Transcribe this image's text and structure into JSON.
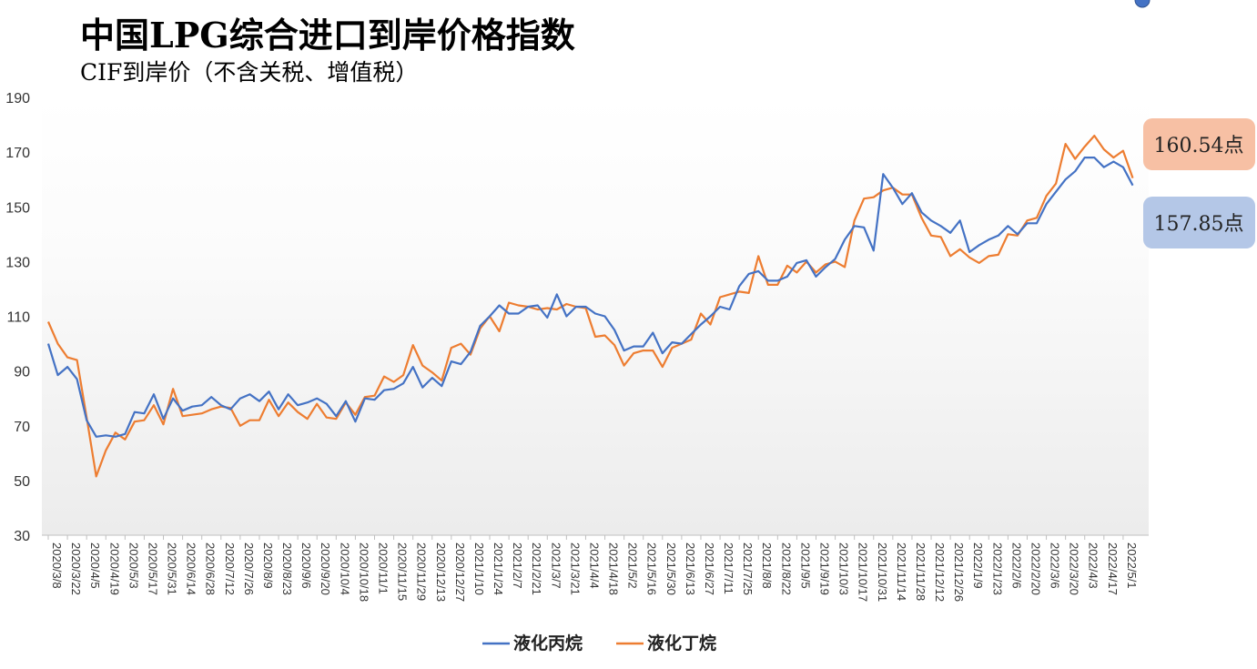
{
  "chart_data": {
    "type": "line",
    "title": "中国LPG综合进口到岸价格指数",
    "subtitle": "CIF到岸价（不含关税、增值税）",
    "ylim": [
      30,
      190
    ],
    "y_ticks": [
      "30",
      "50",
      "70",
      "90",
      "110",
      "130",
      "150",
      "170",
      "190"
    ],
    "x_tick_labels": [
      "2020/3/8",
      "2020/3/22",
      "2020/4/5",
      "2020/4/19",
      "2020/5/3",
      "2020/5/17",
      "2020/5/31",
      "2020/6/14",
      "2020/6/28",
      "2020/7/12",
      "2020/7/26",
      "2020/8/9",
      "2020/8/23",
      "2020/9/6",
      "2020/9/20",
      "2020/10/4",
      "2020/10/18",
      "2020/11/1",
      "2020/11/15",
      "2020/11/29",
      "2020/12/13",
      "2020/12/27",
      "2021/1/10",
      "2021/1/24",
      "2021/2/7",
      "2021/2/21",
      "2021/3/7",
      "2021/3/21",
      "2021/4/4",
      "2021/4/18",
      "2021/5/2",
      "2021/5/16",
      "2021/5/30",
      "2021/6/13",
      "2021/6/27",
      "2021/7/11",
      "2021/7/25",
      "2021/8/8",
      "2021/8/22",
      "2021/9/5",
      "2021/9/19",
      "2021/10/3",
      "2021/10/17",
      "2021/10/31",
      "2021/11/14",
      "2021/11/28",
      "2021/12/12",
      "2021/12/26",
      "2022/1/9",
      "2022/1/23",
      "2022/2/6",
      "2022/2/20",
      "2022/3/6",
      "2022/3/20",
      "2022/4/3",
      "2022/4/17",
      "2022/5/1"
    ],
    "x_weeks": 115,
    "series": [
      {
        "name": "液化丙烷",
        "color": "#4472C4",
        "values": [
          100,
          88.5,
          91.5,
          87,
          72,
          66,
          66.5,
          66,
          67,
          75,
          74.5,
          81.5,
          72.5,
          80,
          75.5,
          77,
          77.5,
          80.5,
          77.5,
          76,
          80,
          81.5,
          79,
          82.5,
          76,
          81.5,
          77.5,
          78.5,
          80,
          78,
          73.5,
          79,
          71.5,
          80,
          79.5,
          83,
          83.5,
          85.5,
          91.5,
          84,
          87.5,
          84.5,
          93.5,
          92.5,
          97,
          106.5,
          110,
          114,
          111,
          111,
          113.5,
          114,
          109.5,
          118,
          110,
          113.5,
          113.5,
          111,
          110,
          105,
          97.5,
          99,
          99,
          104,
          96.5,
          100.5,
          100,
          103.5,
          107,
          110,
          113.5,
          112.5,
          121,
          125.5,
          126.5,
          123,
          123,
          124.5,
          129.5,
          130.5,
          124.5,
          128,
          131,
          138,
          143,
          142.5,
          134,
          162,
          157,
          151,
          155,
          148,
          145,
          143,
          140.5,
          145,
          133.5,
          136,
          138,
          139.5,
          143,
          140,
          144,
          144,
          151,
          155.5,
          160,
          163,
          168,
          168,
          164.5,
          166.5,
          164.5,
          157.85
        ]
      },
      {
        "name": "液化丁烷",
        "color": "#ED7D31",
        "values": [
          108,
          100,
          95,
          94,
          73,
          51.5,
          61,
          67.5,
          65,
          71.5,
          72,
          77.5,
          70.5,
          83.5,
          73.5,
          74,
          74.5,
          76,
          77,
          76.5,
          70,
          72,
          72,
          79.5,
          73.5,
          78.5,
          75,
          72.5,
          78,
          73,
          72.5,
          78.5,
          74,
          80.5,
          81,
          88,
          86,
          88.5,
          99.5,
          92,
          89.5,
          86.5,
          98.5,
          100,
          96,
          105.5,
          110,
          104.5,
          115,
          114,
          113.5,
          112.5,
          113,
          112.5,
          114.5,
          113.5,
          113,
          102.5,
          103,
          99.5,
          92,
          96.5,
          97.5,
          97.5,
          91.5,
          98.5,
          100,
          101.5,
          111,
          107,
          117,
          118,
          119,
          118.5,
          132,
          121.5,
          121.5,
          128.5,
          126,
          130,
          126,
          129,
          130,
          128,
          145,
          153,
          153.5,
          156,
          157,
          154.5,
          154.5,
          146,
          139.5,
          139,
          132,
          134.5,
          131.5,
          129.5,
          132,
          132.5,
          140,
          139.5,
          145,
          146,
          154,
          158.5,
          173,
          167.5,
          172,
          176,
          171,
          168,
          170.5,
          160.54
        ]
      }
    ],
    "callouts": {
      "butane": "160.54点",
      "propane": "157.85点",
      "butane_bg": "#F7C0A4",
      "propane_bg": "#B4C7E7"
    },
    "legend": {
      "placement": "bottom"
    }
  }
}
